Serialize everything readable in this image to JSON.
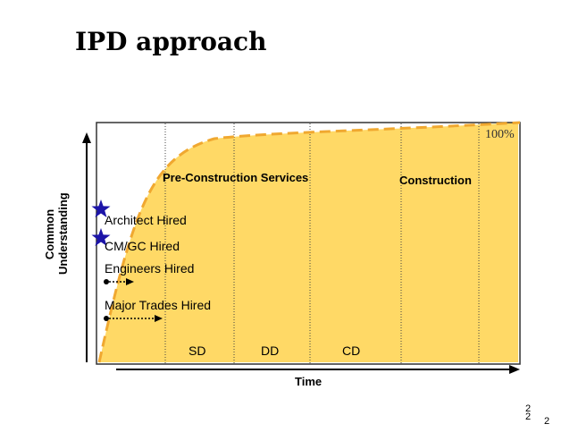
{
  "slide": {
    "title": "IPD approach",
    "page_number_a": "2",
    "page_number_b": "2",
    "page_number_c": "2"
  },
  "diagram": {
    "y_axis_label": [
      "Common",
      "Understanding"
    ],
    "x_axis_label": "Time",
    "percent_label": "100%",
    "phases": [
      "Pre-Construction Services",
      "Construction"
    ],
    "milestones": [
      "Architect Hired",
      "CM/GC Hired",
      "Engineers Hired",
      "Major Trades Hired"
    ],
    "stages": [
      "SD",
      "DD",
      "CD"
    ],
    "colors": {
      "fill": "#FFD966",
      "curve": "#F0A830",
      "star": "#1C14A8",
      "frame": "#333333"
    }
  }
}
